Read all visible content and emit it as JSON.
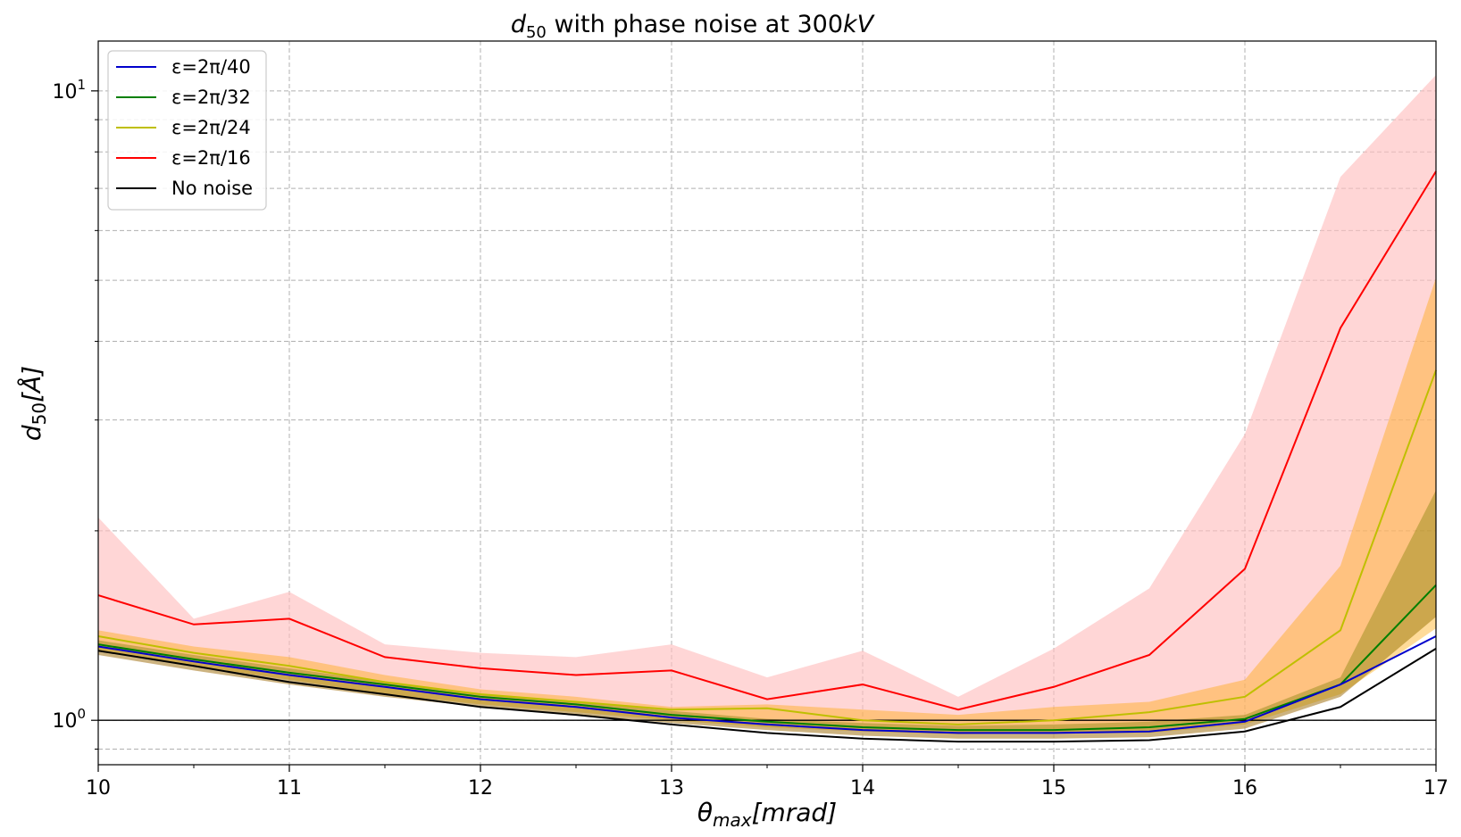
{
  "chart_data": {
    "type": "line",
    "title": {
      "math": "d",
      "sub": "50",
      "text": " with phase noise at 300",
      "unit": "kV"
    },
    "xlabel": {
      "math": "θ",
      "sub": "max",
      "rest": "[mrad]"
    },
    "ylabel": {
      "math": "d",
      "sub": "50",
      "rest": "[Å]"
    },
    "x": [
      10,
      10.5,
      11,
      11.5,
      12,
      12.5,
      13,
      13.5,
      14,
      14.5,
      15,
      15.5,
      16,
      16.5,
      17
    ],
    "xlim": [
      10,
      17
    ],
    "ylim": [
      0.85,
      12
    ],
    "yscale": "log",
    "x_ticks": [
      "10",
      "11",
      "12",
      "13",
      "14",
      "15",
      "16",
      "17"
    ],
    "y_ticks": [
      {
        "base": "10",
        "exp": "0"
      },
      {
        "base": "10",
        "exp": "1"
      }
    ],
    "grid": true,
    "reference_line": 1.0,
    "legend_position": "upper-left",
    "series": [
      {
        "name": "ε=2π/40",
        "color": "#0000cc",
        "values": [
          1.31,
          1.24,
          1.18,
          1.13,
          1.08,
          1.05,
          1.01,
          0.985,
          0.965,
          0.955,
          0.955,
          0.96,
          0.995,
          1.14,
          1.36
        ]
      },
      {
        "name": "ε=2π/32",
        "color": "#007f00",
        "values": [
          1.32,
          1.25,
          1.19,
          1.14,
          1.09,
          1.06,
          1.02,
          0.995,
          0.975,
          0.965,
          0.965,
          0.975,
          1.005,
          1.14,
          1.64
        ],
        "band": {
          "color": "#808000",
          "opacity": 0.4,
          "upper": [
            1.34,
            1.27,
            1.21,
            1.15,
            1.1,
            1.07,
            1.035,
            1.005,
            0.99,
            0.98,
            0.985,
            0.995,
            1.02,
            1.17,
            2.32
          ],
          "lower": [
            1.27,
            1.2,
            1.14,
            1.09,
            1.05,
            1.02,
            0.99,
            0.965,
            0.945,
            0.935,
            0.935,
            0.94,
            0.97,
            1.09,
            1.46
          ]
        }
      },
      {
        "name": "ε=2π/24",
        "color": "#bfbf00",
        "values": [
          1.36,
          1.28,
          1.22,
          1.15,
          1.1,
          1.07,
          1.04,
          1.045,
          1.0,
          0.985,
          1.0,
          1.03,
          1.09,
          1.39,
          3.6
        ],
        "band": {
          "color": "#ffa500",
          "opacity": 0.4,
          "upper": [
            1.39,
            1.31,
            1.26,
            1.18,
            1.12,
            1.09,
            1.05,
            1.06,
            1.04,
            1.02,
            1.05,
            1.07,
            1.16,
            1.76,
            5.05
          ],
          "lower": [
            1.29,
            1.22,
            1.16,
            1.1,
            1.06,
            1.03,
            1.0,
            0.975,
            0.96,
            0.95,
            0.955,
            0.955,
            0.985,
            1.1,
            1.4
          ]
        }
      },
      {
        "name": "ε=2π/16",
        "color": "#ff0000",
        "values": [
          1.58,
          1.42,
          1.45,
          1.26,
          1.21,
          1.18,
          1.2,
          1.08,
          1.14,
          1.04,
          1.13,
          1.27,
          1.74,
          4.2,
          7.45
        ],
        "band": {
          "color": "#ffc0c0",
          "opacity": 0.65,
          "upper": [
            2.1,
            1.45,
            1.6,
            1.32,
            1.28,
            1.26,
            1.32,
            1.17,
            1.29,
            1.09,
            1.3,
            1.62,
            2.85,
            7.3,
            10.6
          ],
          "lower": [
            1.27,
            1.2,
            1.14,
            1.09,
            1.05,
            1.02,
            0.99,
            0.965,
            0.945,
            0.935,
            0.935,
            0.94,
            0.97,
            1.09,
            1.46
          ]
        }
      },
      {
        "name": "No noise",
        "color": "#000000",
        "values": [
          1.29,
          1.22,
          1.15,
          1.1,
          1.05,
          1.02,
          0.985,
          0.955,
          0.935,
          0.925,
          0.925,
          0.93,
          0.96,
          1.05,
          1.3
        ]
      }
    ]
  }
}
